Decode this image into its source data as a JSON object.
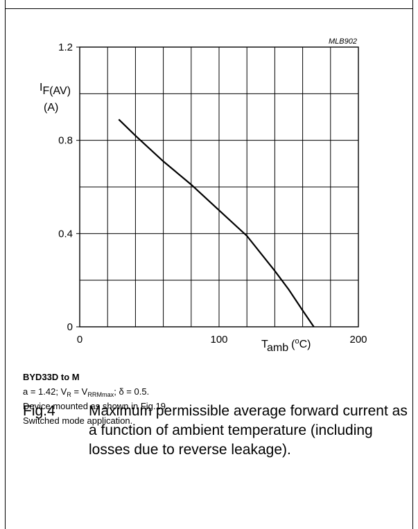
{
  "chart_data": {
    "type": "line",
    "code": "MLB902",
    "ylabel": "I",
    "ylabel_sub": "F(AV)",
    "ylabel_unit": "(A)",
    "xlabel": "T",
    "xlabel_sub": "amb",
    "xlabel_unit": "(°C)",
    "xlim": [
      0,
      200
    ],
    "ylim": [
      0,
      1.2
    ],
    "x_ticks": [
      "0",
      "100",
      "200"
    ],
    "y_ticks": [
      "0",
      "0.4",
      "0.8",
      "1.2"
    ],
    "grid": true,
    "series": [
      {
        "x": [
          28,
          40,
          60,
          80,
          100,
          120,
          140,
          150,
          160,
          168
        ],
        "y": [
          0.89,
          0.82,
          0.71,
          0.61,
          0.5,
          0.39,
          0.24,
          0.16,
          0.07,
          0.0
        ]
      }
    ]
  },
  "caption": {
    "title": "BYD33D to M",
    "line1_a": "a = 1.42; V",
    "line1_b": "R",
    "line1_c": " = V",
    "line1_d": "RRMmax",
    "line1_e": "; δ = 0.5.",
    "line2": "Device mounted as shown in Fig.19.",
    "line3": "Switched mode application."
  },
  "figure": {
    "number": "Fig.4",
    "text": "Maximum permissible average forward current as a function of ambient temperature (including losses due to reverse leakage)."
  }
}
